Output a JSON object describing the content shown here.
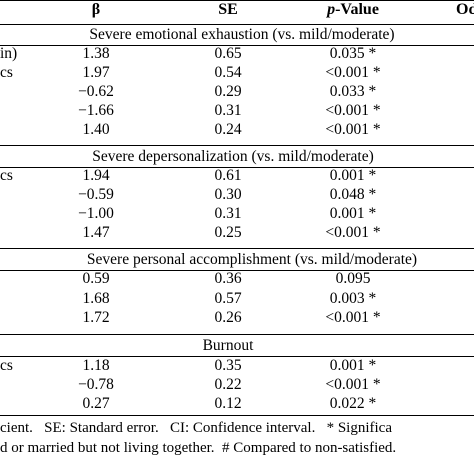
{
  "header": {
    "beta": "β",
    "se": "SE",
    "p_prefix": "p",
    "p_suffix": "-Value",
    "or_partial": "Od"
  },
  "sections": [
    {
      "title": "Severe emotional exhaustion (vs. mild/moderate)",
      "labels": [
        "in)",
        "cs"
      ],
      "rows": [
        {
          "beta": "1.38",
          "se": "0.65",
          "p": "0.035 *"
        },
        {
          "beta": "1.97",
          "se": "0.54",
          "p": "<0.001 *"
        },
        {
          "beta": "−0.62",
          "se": "0.29",
          "p": "0.033 *"
        },
        {
          "beta": "−1.66",
          "se": "0.31",
          "p": "<0.001 *"
        },
        {
          "beta": "1.40",
          "se": "0.24",
          "p": "<0.001 *"
        }
      ]
    },
    {
      "title": "Severe depersonalization (vs. mild/moderate)",
      "labels": [
        "cs"
      ],
      "rows": [
        {
          "beta": "1.94",
          "se": "0.61",
          "p": "0.001 *"
        },
        {
          "beta": "−0.59",
          "se": "0.30",
          "p": "0.048 *"
        },
        {
          "beta": "−1.00",
          "se": "0.31",
          "p": "0.001 *"
        },
        {
          "beta": "1.47",
          "se": "0.25",
          "p": "<0.001 *"
        }
      ]
    },
    {
      "title": "Severe personal accomplishment (vs. mild/moderate)",
      "labels": [],
      "rows": [
        {
          "beta": "0.59",
          "se": "0.36",
          "p": "0.095"
        },
        {
          "beta": "1.68",
          "se": "0.57",
          "p": "0.003 *"
        },
        {
          "beta": "1.72",
          "se": "0.26",
          "p": "<0.001 *"
        }
      ]
    },
    {
      "title": "Burnout",
      "labels": [
        "cs"
      ],
      "rows": [
        {
          "beta": "1.18",
          "se": "0.35",
          "p": "0.001 *"
        },
        {
          "beta": "−0.78",
          "se": "0.22",
          "p": "<0.001 *"
        },
        {
          "beta": "0.27",
          "se": "0.12",
          "p": "0.022 *"
        }
      ]
    }
  ],
  "footnotes": {
    "line1": "cient.   SE: Standard error.   CI: Confidence interval.   * Significa",
    "line2": "d or married but not living together.  # Compared to non-satisfied. "
  }
}
